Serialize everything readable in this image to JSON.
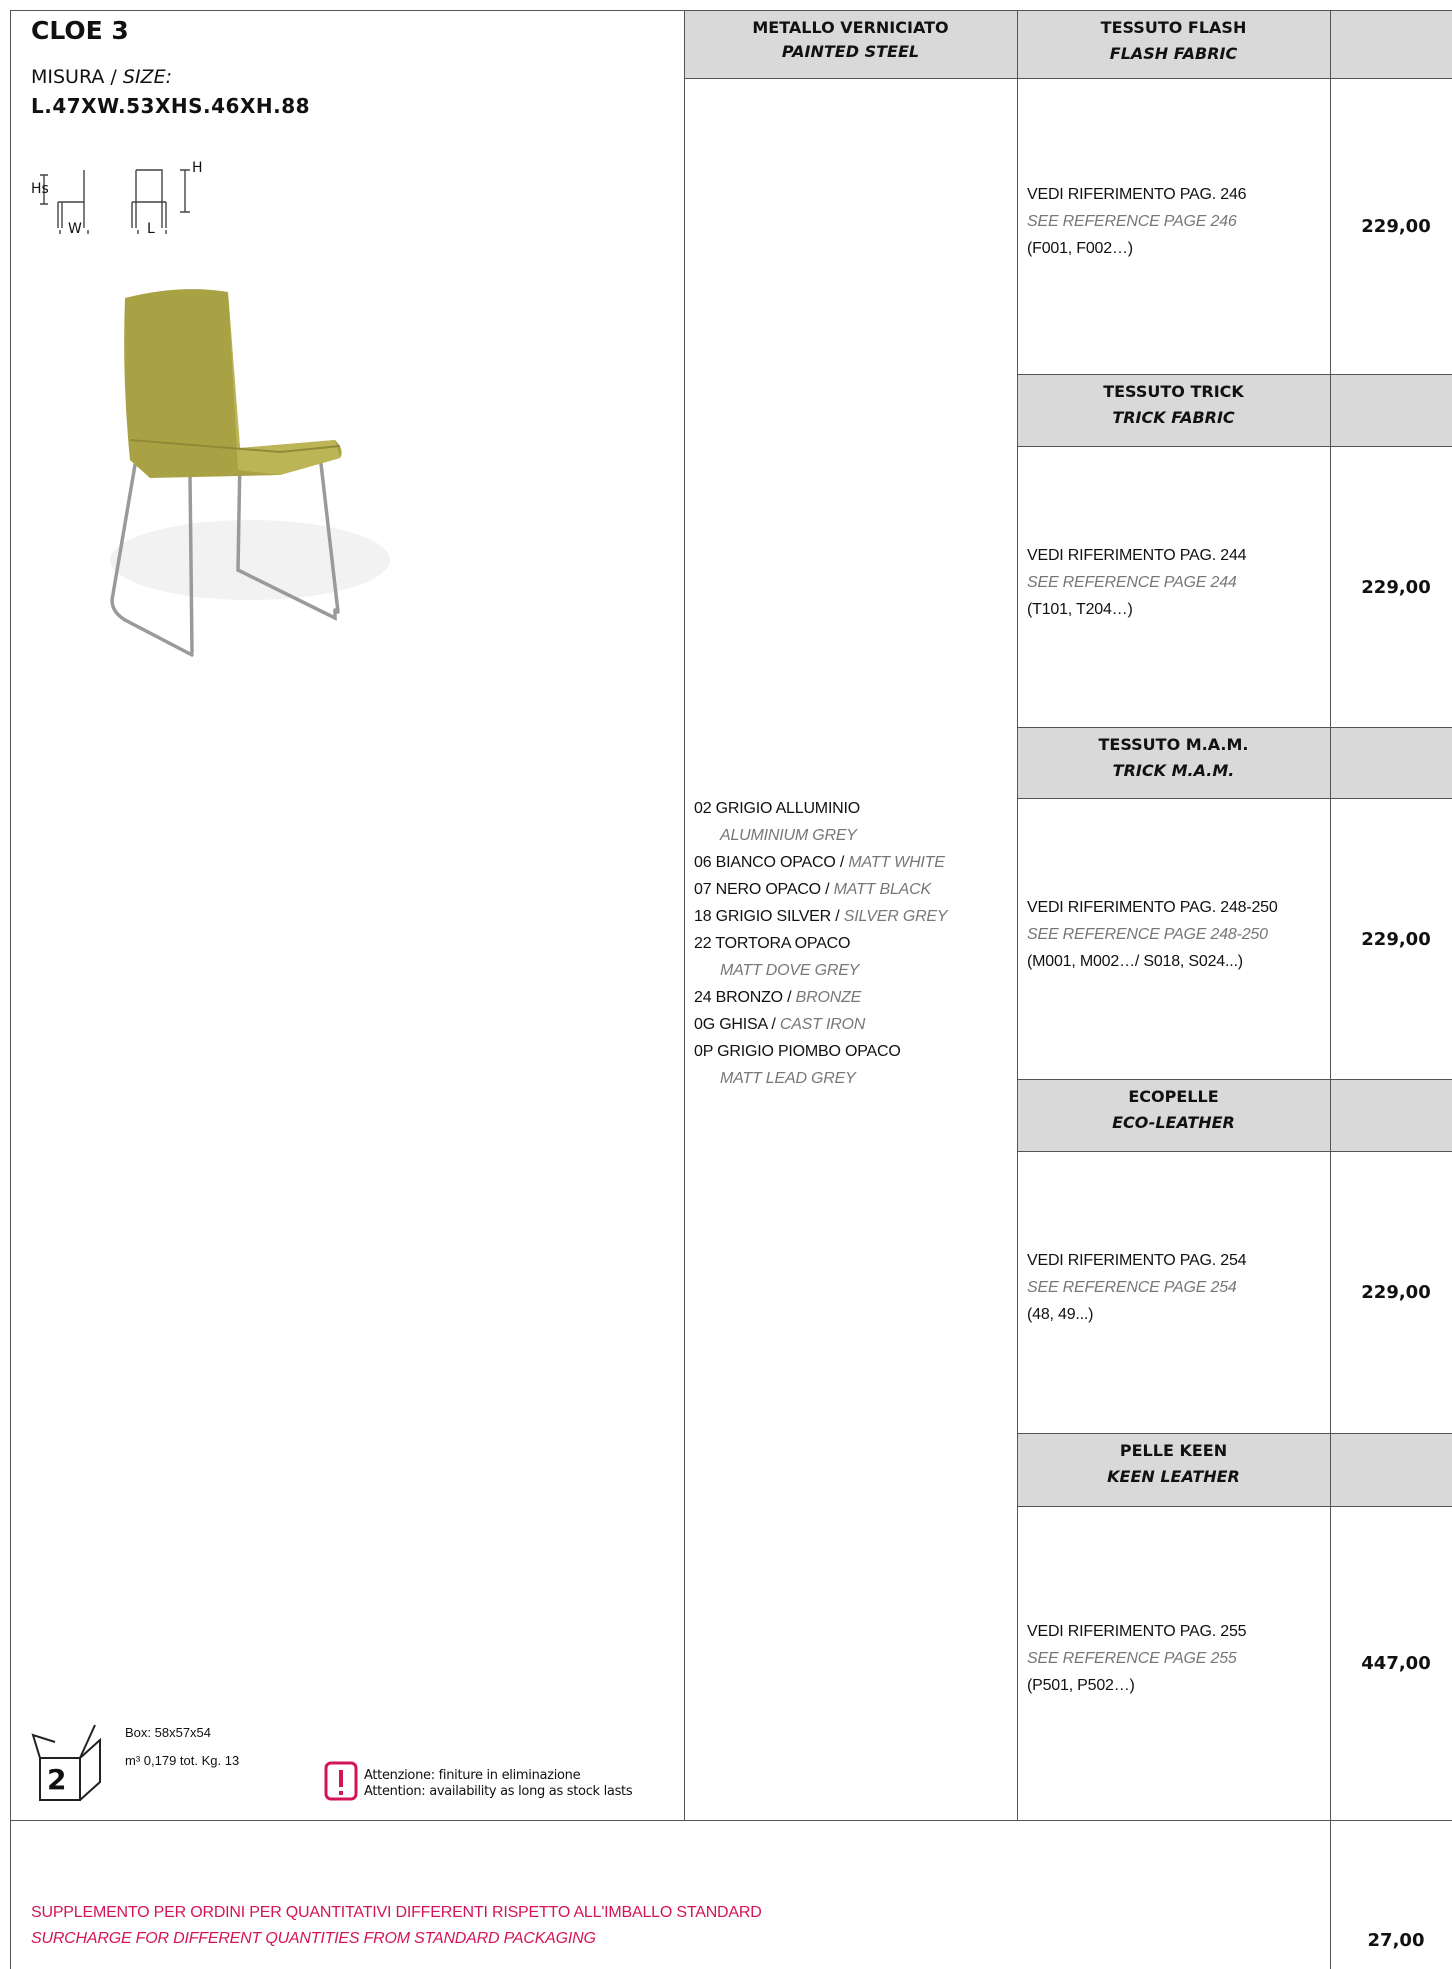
{
  "product": {
    "name": "CLOE 3",
    "size_label_it": "MISURA /",
    "size_label_en": "SIZE:",
    "dimensions": "L.47XW.53XHS.46XH.88",
    "diagram_labels": {
      "hs": "Hs",
      "w": "W",
      "l": "L",
      "h": "H"
    }
  },
  "frame_header": {
    "it": "METALLO VERNICIATO",
    "en": "PAINTED STEEL"
  },
  "finishes": [
    {
      "it": "02 GRIGIO ALLUMINIO",
      "en": "ALUMINIUM GREY"
    },
    {
      "it": "06 BIANCO OPACO /",
      "en": "MATT WHITE"
    },
    {
      "it": "07 NERO OPACO /",
      "en": "MATT BLACK"
    },
    {
      "it": "18 GRIGIO SILVER /",
      "en": "SILVER GREY"
    },
    {
      "it": "22 TORTORA OPACO",
      "en": "MATT DOVE GREY"
    },
    {
      "it": "24 BRONZO /",
      "en": "BRONZE"
    },
    {
      "it": "0G GHISA /",
      "en": "CAST IRON"
    },
    {
      "it": "0P GRIGIO PIOMBO OPACO",
      "en": "MATT LEAD GREY"
    }
  ],
  "fabrics": [
    {
      "title_it": "TESSUTO FLASH",
      "title_en": "FLASH FABRIC",
      "ref_it": "VEDI RIFERIMENTO PAG. 246",
      "ref_en": "SEE REFERENCE PAGE 246",
      "codes": "(F001, F002…)",
      "price": "229,00"
    },
    {
      "title_it": "TESSUTO TRICK",
      "title_en": "TRICK FABRIC",
      "ref_it": "VEDI RIFERIMENTO PAG. 244",
      "ref_en": "SEE REFERENCE PAGE 244",
      "codes": "(T101, T204…)",
      "price": "229,00"
    },
    {
      "title_it": "TESSUTO M.A.M.",
      "title_en": "TRICK M.A.M.",
      "ref_it": "VEDI RIFERIMENTO PAG. 248-250",
      "ref_en": "SEE REFERENCE PAGE 248-250",
      "codes": "(M001, M002…/ S018, S024...)",
      "price": "229,00"
    },
    {
      "title_it": "ECOPELLE",
      "title_en": "ECO-LEATHER",
      "ref_it": "VEDI RIFERIMENTO PAG. 254",
      "ref_en": "SEE REFERENCE PAGE 254",
      "codes": "(48, 49...)",
      "price": "229,00"
    },
    {
      "title_it": "PELLE KEEN",
      "title_en": "KEEN LEATHER",
      "ref_it": "VEDI RIFERIMENTO PAG. 255",
      "ref_en": "SEE REFERENCE PAGE 255",
      "codes": "(P501, P502…)",
      "price": "447,00"
    }
  ],
  "box": {
    "count": "2",
    "size": "Box: 58x57x54",
    "volume": "m³ 0,179  tot. Kg. 13"
  },
  "warning": {
    "it": "Attenzione: finiture in eliminazione",
    "en": "Attention: availability as long as stock lasts"
  },
  "surcharge": {
    "it": "SUPPLEMENTO PER ORDINI PER QUANTITATIVI DIFFERENTI RISPETTO ALL'IMBALLO STANDARD",
    "en": "SURCHARGE FOR DIFFERENT QUANTITIES FROM STANDARD PACKAGING",
    "price": "27,00"
  }
}
